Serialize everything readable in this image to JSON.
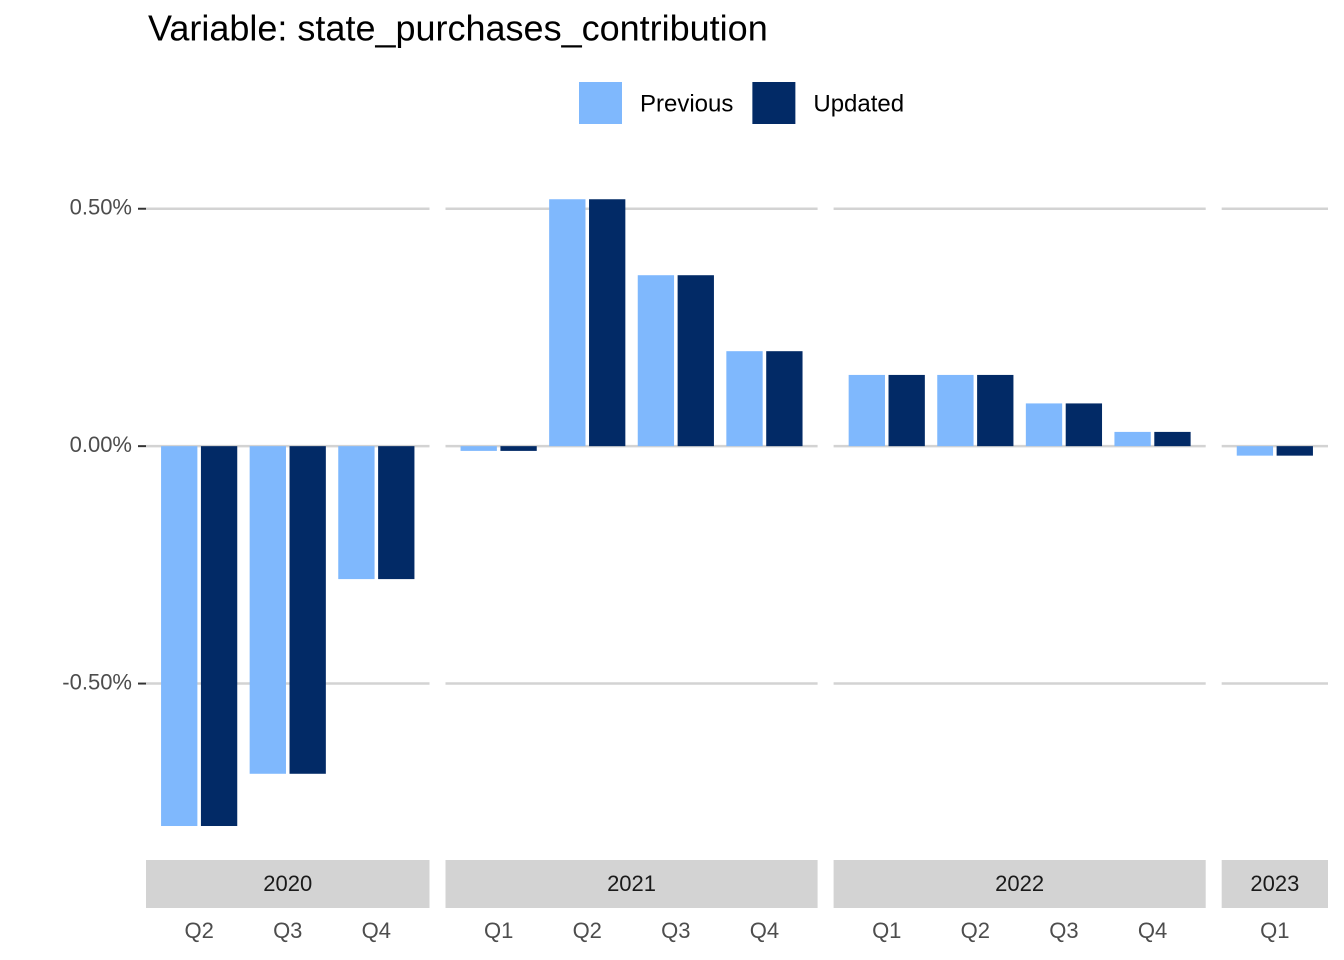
{
  "chart_data": {
    "type": "bar",
    "title": "Variable: state_purchases_contribution",
    "facets": [
      {
        "label": "2020",
        "categories": [
          "Q2",
          "Q3",
          "Q4"
        ]
      },
      {
        "label": "2021",
        "categories": [
          "Q1",
          "Q2",
          "Q3",
          "Q4"
        ]
      },
      {
        "label": "2022",
        "categories": [
          "Q1",
          "Q2",
          "Q3",
          "Q4"
        ]
      },
      {
        "label": "2023",
        "categories": [
          "Q1"
        ]
      }
    ],
    "series": [
      {
        "name": "Previous",
        "color": "#7fb8fd",
        "values": [
          -0.8,
          -0.69,
          -0.28,
          -0.01,
          0.52,
          0.36,
          0.2,
          0.15,
          0.15,
          0.09,
          0.03,
          -0.02
        ]
      },
      {
        "name": "Updated",
        "color": "#022a66",
        "values": [
          -0.8,
          -0.69,
          -0.28,
          -0.01,
          0.52,
          0.36,
          0.2,
          0.15,
          0.15,
          0.09,
          0.03,
          -0.02
        ]
      }
    ],
    "ylim": [
      -0.84,
      0.55
    ],
    "yticks": [
      {
        "value": -0.5,
        "label": "-0.50%"
      },
      {
        "value": 0,
        "label": "0.00%"
      },
      {
        "value": 0.5,
        "label": "0.50%"
      }
    ],
    "grid": true,
    "legend": "top"
  }
}
